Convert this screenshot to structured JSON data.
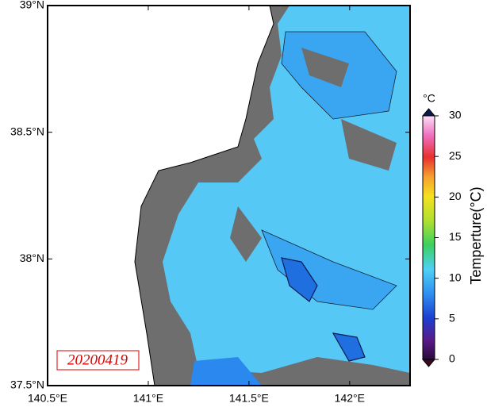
{
  "map": {
    "lonlim": [
      140.5,
      142.3
    ],
    "latlim": [
      37.5,
      39
    ],
    "lon_ticks": [
      {
        "value": 140.5,
        "label": "140.5°E"
      },
      {
        "value": 141,
        "label": "141°E"
      },
      {
        "value": 141.5,
        "label": "141.5°E"
      },
      {
        "value": 142,
        "label": "142°E"
      }
    ],
    "lat_ticks": [
      {
        "value": 37.5,
        "label": "37.5°N"
      },
      {
        "value": 38,
        "label": "38°N"
      },
      {
        "value": 38.5,
        "label": "38.5°N"
      },
      {
        "value": 39,
        "label": "39°N"
      }
    ],
    "date_label": "20200419"
  },
  "colorbar": {
    "unit": "°C",
    "title": "Temperture(°C)",
    "range": [
      0,
      30
    ],
    "ticks": [
      0,
      5,
      10,
      15,
      20,
      25,
      30
    ]
  }
}
